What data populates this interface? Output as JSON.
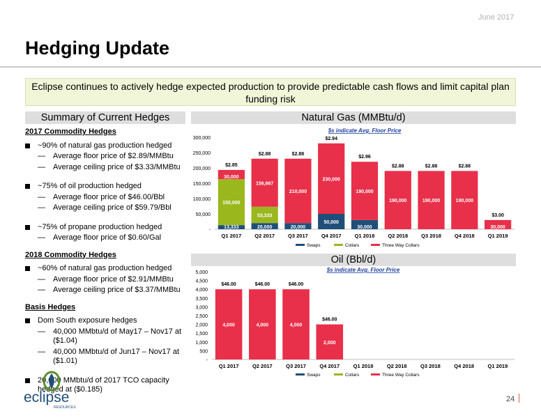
{
  "header": {
    "date": "June 2017",
    "title": "Hedging Update"
  },
  "banner": "Eclipse continues to actively hedge expected production to provide predictable cash flows and limit capital plan funding risk",
  "summary": {
    "heading": "Summary of Current Hedges",
    "groups": [
      {
        "title": "2017 Commodity Hedges",
        "bullets": [
          {
            "text": "~90% of natural gas production hedged",
            "subs": [
              "Average floor price of $2.89/MMBtu",
              "Average ceiling price of $3.33/MMBtu"
            ]
          },
          {
            "text": "~75% of oil production hedged",
            "subs": [
              "Average floor price of $46.00/Bbl",
              "Average ceiling price of $59.79/Bbl"
            ]
          },
          {
            "text": "~75% of propane production hedged",
            "subs": [
              "Average floor price of $0.60/Gal"
            ]
          }
        ]
      },
      {
        "title": "2018 Commodity Hedges",
        "bullets": [
          {
            "text": "~60% of natural gas production hedged",
            "subs": [
              "Average floor price of $2.91/MMBtu",
              "Average ceiling price of $3.37/MMBtu"
            ]
          }
        ]
      },
      {
        "title": "Basis Hedges",
        "bullets": [
          {
            "text": "Dom South exposure hedges",
            "subs": [
              "40,000 MMbtu/d of May17 – Nov17 at ($1.04)",
              "40,000 MMbtu/d of Jun17 – Nov17 at ($1.01)"
            ]
          },
          {
            "text": "20,000 MMbtu/d of 2017 TCO capacity hedged at ($0.185)",
            "subs": []
          }
        ]
      }
    ]
  },
  "gas": {
    "heading": "Natural Gas (MMBtu/d)"
  },
  "oil": {
    "heading": "Oil (Bbl/d)"
  },
  "colors": {
    "swaps": "#1f4e79",
    "collars": "#9ab81e",
    "three_way": "#e8304a",
    "note": "#1f3fa0"
  },
  "chart_data": [
    {
      "type": "bar",
      "stacked": true,
      "note": "$s indicate Avg. Floor Price",
      "categories": [
        "Q1 2017",
        "Q2 2017",
        "Q3 2017",
        "Q4 2017",
        "Q1 2018",
        "Q2 2018",
        "Q3 2018",
        "Q4 2018",
        "Q1 2019"
      ],
      "ylim": [
        0,
        300000
      ],
      "yticks": [
        0,
        50000,
        100000,
        150000,
        200000,
        250000,
        300000
      ],
      "ytick_labels": [
        "-",
        "50,000",
        "100,000",
        "150,000",
        "200,000",
        "250,000",
        "300,000"
      ],
      "series": [
        {
          "name": "Swaps",
          "values": [
            13333,
            20000,
            20000,
            50000,
            30000,
            0,
            0,
            0,
            0
          ],
          "labels": [
            "13,333",
            "20,000",
            "20,000",
            "50,000",
            "30,000",
            "",
            "",
            "",
            ""
          ]
        },
        {
          "name": "Collars",
          "values": [
            150000,
            53333,
            0,
            0,
            0,
            0,
            0,
            0,
            0
          ],
          "labels": [
            "150,000",
            "53,333",
            "",
            "",
            "",
            "",
            "",
            "",
            ""
          ]
        },
        {
          "name": "Three Way Collars",
          "values": [
            30000,
            156667,
            210000,
            230000,
            190000,
            190000,
            190000,
            190000,
            30000
          ],
          "labels": [
            "30,000",
            "156,667",
            "210,000",
            "230,000",
            "190,000",
            "190,000",
            "190,000",
            "190,000",
            "30,000"
          ]
        }
      ],
      "price_labels": [
        "$2.85",
        "$2.88",
        "$2.88",
        "$2.94",
        "$2.96",
        "$2.88",
        "$2.88",
        "$2.88",
        "$3.00"
      ],
      "legend": [
        "Swaps",
        "Collars",
        "Three Way Collars"
      ],
      "legend_position": "bottom"
    },
    {
      "type": "bar",
      "stacked": true,
      "note": "$s indicate Avg. Floor Price",
      "categories": [
        "Q1 2017",
        "Q2 2017",
        "Q3 2017",
        "Q4 2017",
        "Q1 2018",
        "Q2 2018",
        "Q3 2018",
        "Q4 2018",
        "Q1 2019"
      ],
      "ylim": [
        0,
        5000
      ],
      "yticks": [
        0,
        500,
        1000,
        1500,
        2000,
        2500,
        3000,
        3500,
        4000,
        4500,
        5000
      ],
      "ytick_labels": [
        "-",
        "500",
        "1,000",
        "1,500",
        "2,000",
        "2,500",
        "3,000",
        "3,500",
        "4,000",
        "4,500",
        "5,000"
      ],
      "series": [
        {
          "name": "Swaps",
          "values": [
            0,
            0,
            0,
            0,
            0,
            0,
            0,
            0,
            0
          ],
          "labels": [
            "",
            "",
            "",
            "",
            "",
            "",
            "",
            "",
            ""
          ]
        },
        {
          "name": "Collars",
          "values": [
            0,
            0,
            0,
            0,
            0,
            0,
            0,
            0,
            0
          ],
          "labels": [
            "",
            "",
            "",
            "",
            "",
            "",
            "",
            "",
            ""
          ]
        },
        {
          "name": "Three Way Collars",
          "values": [
            4000,
            4000,
            4000,
            2000,
            0,
            0,
            0,
            0,
            0
          ],
          "labels": [
            "4,000",
            "4,000",
            "4,000",
            "2,000",
            "",
            "",
            "",
            "",
            ""
          ]
        }
      ],
      "price_labels": [
        "$46.00",
        "$46.00",
        "$46.00",
        "$46.00",
        "",
        "",
        "",
        "",
        ""
      ],
      "legend": [
        "Swaps",
        "Collars",
        "Three Way Collars"
      ],
      "legend_position": "bottom"
    }
  ],
  "footer": {
    "page": "24",
    "logo_text": "eclipse",
    "logo_subtext": "RESOURCES"
  }
}
